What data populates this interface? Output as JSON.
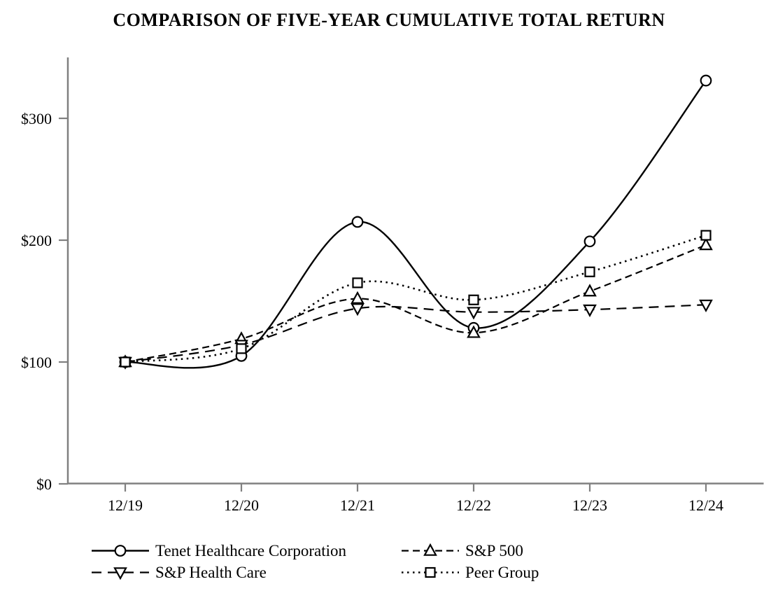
{
  "chart_data": {
    "type": "line",
    "title": "COMPARISON OF FIVE-YEAR CUMULATIVE TOTAL RETURN",
    "x": [
      "12/19",
      "12/20",
      "12/21",
      "12/22",
      "12/23",
      "12/24"
    ],
    "series": [
      {
        "name": "Tenet Healthcare Corporation",
        "line_style": "solid",
        "marker": "circle",
        "values": [
          100,
          105,
          215,
          128,
          199,
          331
        ]
      },
      {
        "name": "S&P 500",
        "line_style": "dash",
        "marker": "triangle-up",
        "values": [
          100,
          119,
          152,
          124,
          158,
          196
        ]
      },
      {
        "name": "S&P Health Care",
        "line_style": "longdash",
        "marker": "triangle-down",
        "values": [
          100,
          114,
          144,
          141,
          143,
          147
        ]
      },
      {
        "name": "Peer Group",
        "line_style": "dot",
        "marker": "square",
        "values": [
          100,
          111,
          165,
          151,
          174,
          204
        ]
      }
    ],
    "xlabel": "",
    "ylabel": "",
    "ylim": [
      0,
      350
    ],
    "yticks": [
      {
        "value": 0,
        "label": "$0"
      },
      {
        "value": 100,
        "label": "$100"
      },
      {
        "value": 200,
        "label": "$200"
      },
      {
        "value": 300,
        "label": "$300"
      }
    ],
    "grid": false,
    "smooth_lines": true,
    "legend_position": "bottom-left-two-column",
    "colors": {
      "line": "#000000",
      "marker_fill": "#ffffff",
      "axis": "#808080",
      "text": "#000000",
      "background": "#ffffff"
    }
  }
}
